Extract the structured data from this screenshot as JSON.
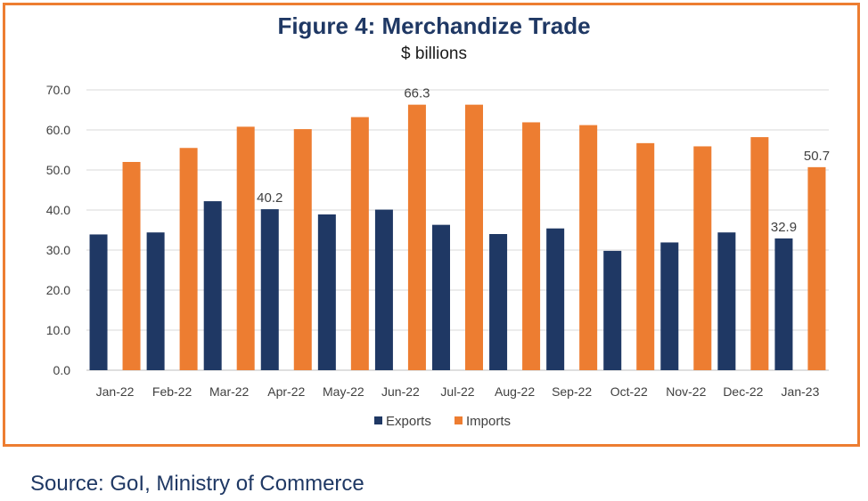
{
  "chart_data": {
    "type": "bar",
    "title": "Figure 4: Merchandize Trade",
    "subtitle": "$ billions",
    "categories": [
      "Jan-22",
      "Feb-22",
      "Mar-22",
      "Apr-22",
      "May-22",
      "Jun-22",
      "Jul-22",
      "Aug-22",
      "Sep-22",
      "Oct-22",
      "Nov-22",
      "Dec-22",
      "Jan-23"
    ],
    "series": [
      {
        "name": "Exports",
        "color": "#1f3864",
        "values": [
          33.9,
          34.4,
          42.2,
          40.2,
          38.9,
          40.1,
          36.3,
          34.0,
          35.4,
          29.8,
          31.9,
          34.4,
          32.9
        ]
      },
      {
        "name": "Imports",
        "color": "#ed7d31",
        "values": [
          52.0,
          55.5,
          60.8,
          60.2,
          63.2,
          66.3,
          66.3,
          61.9,
          61.2,
          56.7,
          55.9,
          58.2,
          50.7
        ]
      }
    ],
    "data_labels": [
      {
        "series": 0,
        "index": 3,
        "text": "40.2"
      },
      {
        "series": 1,
        "index": 5,
        "text": "66.3"
      },
      {
        "series": 0,
        "index": 12,
        "text": "32.9"
      },
      {
        "series": 1,
        "index": 12,
        "text": "50.7"
      }
    ],
    "ylim": [
      0,
      70
    ],
    "yticks": [
      "0.0",
      "10.0",
      "20.0",
      "30.0",
      "40.0",
      "50.0",
      "60.0",
      "70.0"
    ],
    "grid": true,
    "legend": "bottom",
    "xlabel": "",
    "ylabel": ""
  },
  "source": "Source: GoI, Ministry of Commerce",
  "colors": {
    "frame": "#ed7d31",
    "title": "#1f3864",
    "grid": "#d9d9d9"
  }
}
